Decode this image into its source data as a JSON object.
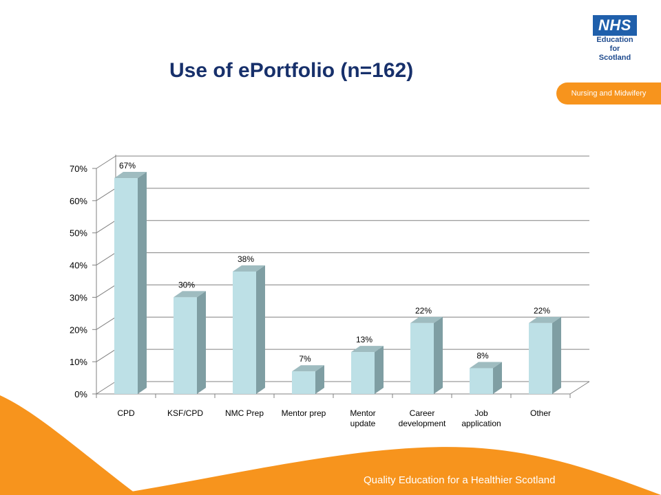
{
  "header": {
    "title": "Use of ePortfolio (n=162)",
    "logo": {
      "mark": "NHS",
      "lines": [
        "Education",
        "for",
        "Scotland"
      ]
    },
    "department": "Nursing and Midwifery"
  },
  "footer": {
    "text": "Quality Education for a Healthier Scotland"
  },
  "colors": {
    "accent": "#f7941d",
    "title": "#17306b",
    "bar_front": "#bde0e6",
    "bar_side": "#7f9ea3",
    "grid": "#808080"
  },
  "chart_data": {
    "type": "bar",
    "title": "",
    "xlabel": "",
    "ylabel": "",
    "categories": [
      "CPD",
      "KSF/CPD",
      "NMC Prep",
      "Mentor prep",
      "Mentor update",
      "Career development",
      "Job application",
      "Other"
    ],
    "values": [
      67,
      30,
      38,
      7,
      13,
      22,
      8,
      22
    ],
    "data_labels": [
      "67%",
      "30%",
      "38%",
      "7%",
      "13%",
      "22%",
      "8%",
      "22%"
    ],
    "y_ticks": [
      "0%",
      "10%",
      "20%",
      "30%",
      "40%",
      "50%",
      "60%",
      "70%"
    ],
    "ylim": [
      0,
      70
    ],
    "grid": true,
    "legend": "none",
    "style": "3d-columns"
  }
}
